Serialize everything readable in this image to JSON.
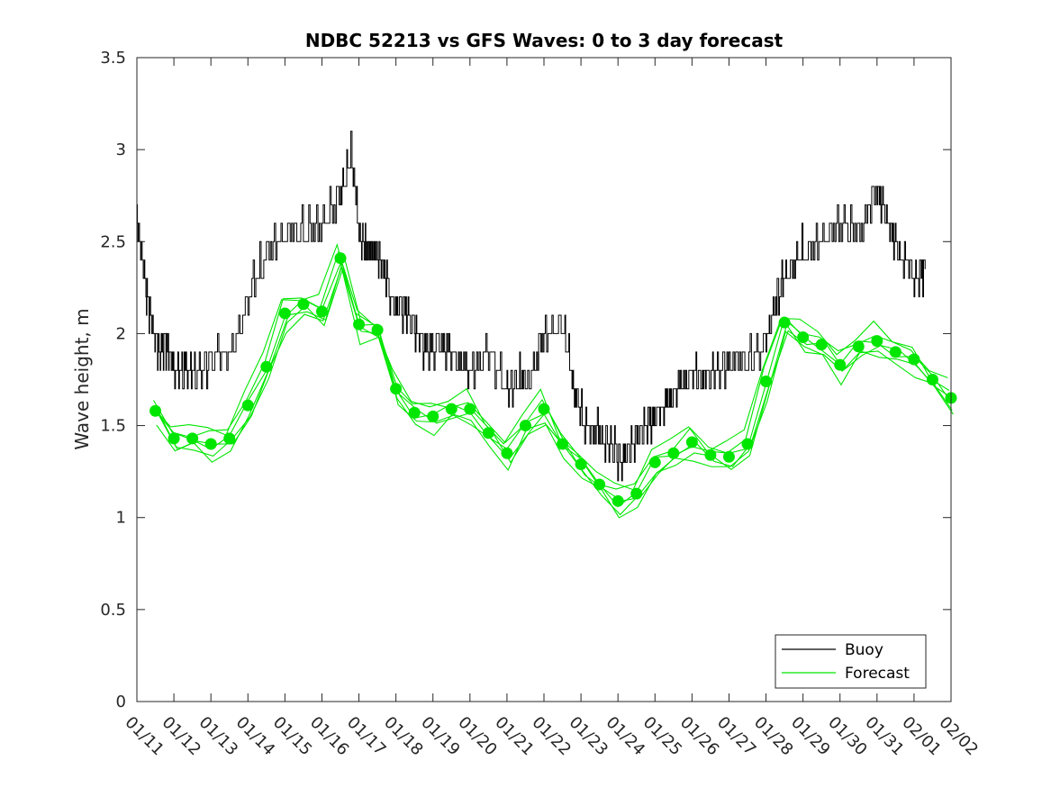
{
  "chart_data": {
    "type": "line",
    "title": "NDBC 52213 vs GFS Waves: 0 to 3 day forecast",
    "xlabel": "",
    "ylabel": "Wave height, m",
    "ylim": [
      0,
      3.5
    ],
    "yticks": [
      "0",
      "0.5",
      "1",
      "1.5",
      "2",
      "2.5",
      "3",
      "3.5"
    ],
    "xlim": [
      0,
      22
    ],
    "xticks": [
      "01/11",
      "01/12",
      "01/13",
      "01/14",
      "01/15",
      "01/16",
      "01/17",
      "01/18",
      "01/19",
      "01/20",
      "01/21",
      "01/22",
      "01/23",
      "01/24",
      "01/25",
      "01/26",
      "01/27",
      "01/28",
      "01/29",
      "01/30",
      "01/31",
      "02/01",
      "02/02"
    ],
    "colors": {
      "buoy": "#000000",
      "forecast": "#00e600"
    },
    "legend": {
      "position": "bottom-right",
      "entries": [
        "Buoy",
        "Forecast"
      ]
    },
    "series": [
      {
        "name": "Buoy",
        "x": [
          0,
          0.2,
          0.4,
          0.6,
          0.8,
          1.0,
          1.3,
          1.6,
          2.0,
          2.5,
          3.0,
          3.5,
          4.0,
          4.5,
          5.0,
          5.5,
          5.8,
          6.0,
          6.2,
          6.4,
          6.6,
          6.9,
          7.2,
          7.5,
          7.8,
          8.2,
          8.6,
          9.0,
          9.5,
          10.0,
          10.3,
          10.6,
          11.0,
          11.5,
          11.8,
          12.1,
          12.5,
          12.8,
          13.1,
          13.4,
          13.7,
          14.0,
          14.3,
          14.6,
          15.0,
          15.3,
          15.6,
          16.0,
          16.5,
          17.0,
          17.3,
          17.6,
          18.0,
          18.5,
          19.0,
          19.5,
          20.0,
          20.3,
          20.6,
          21.0,
          21.3
        ],
        "values": [
          2.65,
          2.3,
          2.05,
          1.9,
          1.95,
          1.8,
          1.8,
          1.8,
          1.85,
          1.9,
          2.2,
          2.45,
          2.55,
          2.55,
          2.6,
          2.75,
          3.0,
          2.55,
          2.45,
          2.45,
          2.4,
          2.15,
          2.15,
          2.05,
          1.9,
          1.95,
          1.85,
          1.8,
          1.9,
          1.7,
          1.75,
          1.75,
          2.0,
          2.05,
          1.7,
          1.5,
          1.45,
          1.4,
          1.3,
          1.4,
          1.5,
          1.55,
          1.6,
          1.7,
          1.8,
          1.75,
          1.8,
          1.85,
          1.85,
          1.95,
          2.2,
          2.35,
          2.45,
          2.5,
          2.6,
          2.55,
          2.8,
          2.6,
          2.45,
          2.3,
          2.35
        ]
      },
      {
        "name": "Forecast",
        "x": [
          0.5,
          1.0,
          1.5,
          2.0,
          2.5,
          3.0,
          3.5,
          4.0,
          4.5,
          5.0,
          5.5,
          6.0,
          6.5,
          7.0,
          7.5,
          8.0,
          8.5,
          9.0,
          9.5,
          10.0,
          10.5,
          11.0,
          11.5,
          12.0,
          12.5,
          13.0,
          13.5,
          14.0,
          14.5,
          15.0,
          15.5,
          16.0,
          16.5,
          17.0,
          17.5,
          18.0,
          18.5,
          19.0,
          19.5,
          20.0,
          20.5,
          21.0,
          21.5,
          22.0
        ],
        "values": [
          1.58,
          1.43,
          1.43,
          1.4,
          1.43,
          1.61,
          1.82,
          2.11,
          2.16,
          2.12,
          2.41,
          2.05,
          2.02,
          1.7,
          1.57,
          1.55,
          1.59,
          1.59,
          1.46,
          1.35,
          1.5,
          1.59,
          1.4,
          1.29,
          1.18,
          1.09,
          1.13,
          1.3,
          1.35,
          1.41,
          1.34,
          1.33,
          1.4,
          1.74,
          2.06,
          1.98,
          1.94,
          1.83,
          1.93,
          1.96,
          1.9,
          1.86,
          1.75,
          1.65
        ]
      }
    ]
  }
}
